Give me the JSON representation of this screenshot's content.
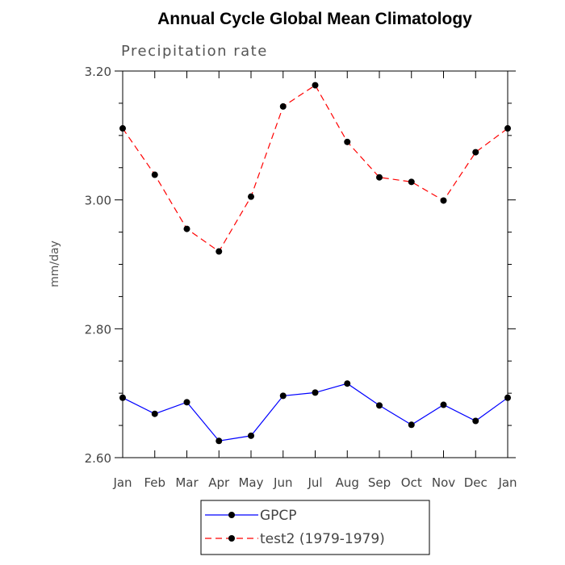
{
  "chart_data": {
    "type": "line",
    "title": "Annual Cycle Global Mean Climatology",
    "subtitle": "Precipitation rate",
    "xlabel": "",
    "ylabel": "mm/day",
    "categories": [
      "Jan",
      "Feb",
      "Mar",
      "Apr",
      "May",
      "Jun",
      "Jul",
      "Aug",
      "Sep",
      "Oct",
      "Nov",
      "Dec",
      "Jan"
    ],
    "ylim": [
      2.6,
      3.2
    ],
    "yticks": [
      "2.60",
      "2.80",
      "3.00",
      "3.20"
    ],
    "grid": false,
    "legend_position": "bottom",
    "series": [
      {
        "name": "GPCP",
        "color": "#0000ff",
        "style": "solid",
        "marker": "filled-circle",
        "values": [
          2.693,
          2.668,
          2.686,
          2.626,
          2.634,
          2.696,
          2.701,
          2.715,
          2.681,
          2.651,
          2.682,
          2.657,
          2.693
        ]
      },
      {
        "name": "test2 (1979-1979)",
        "color": "#ff0000",
        "style": "dashed",
        "marker": "filled-circle",
        "values": [
          3.111,
          3.039,
          2.955,
          2.92,
          3.005,
          3.145,
          3.178,
          3.09,
          3.035,
          3.028,
          2.999,
          3.074,
          3.111
        ]
      }
    ]
  }
}
